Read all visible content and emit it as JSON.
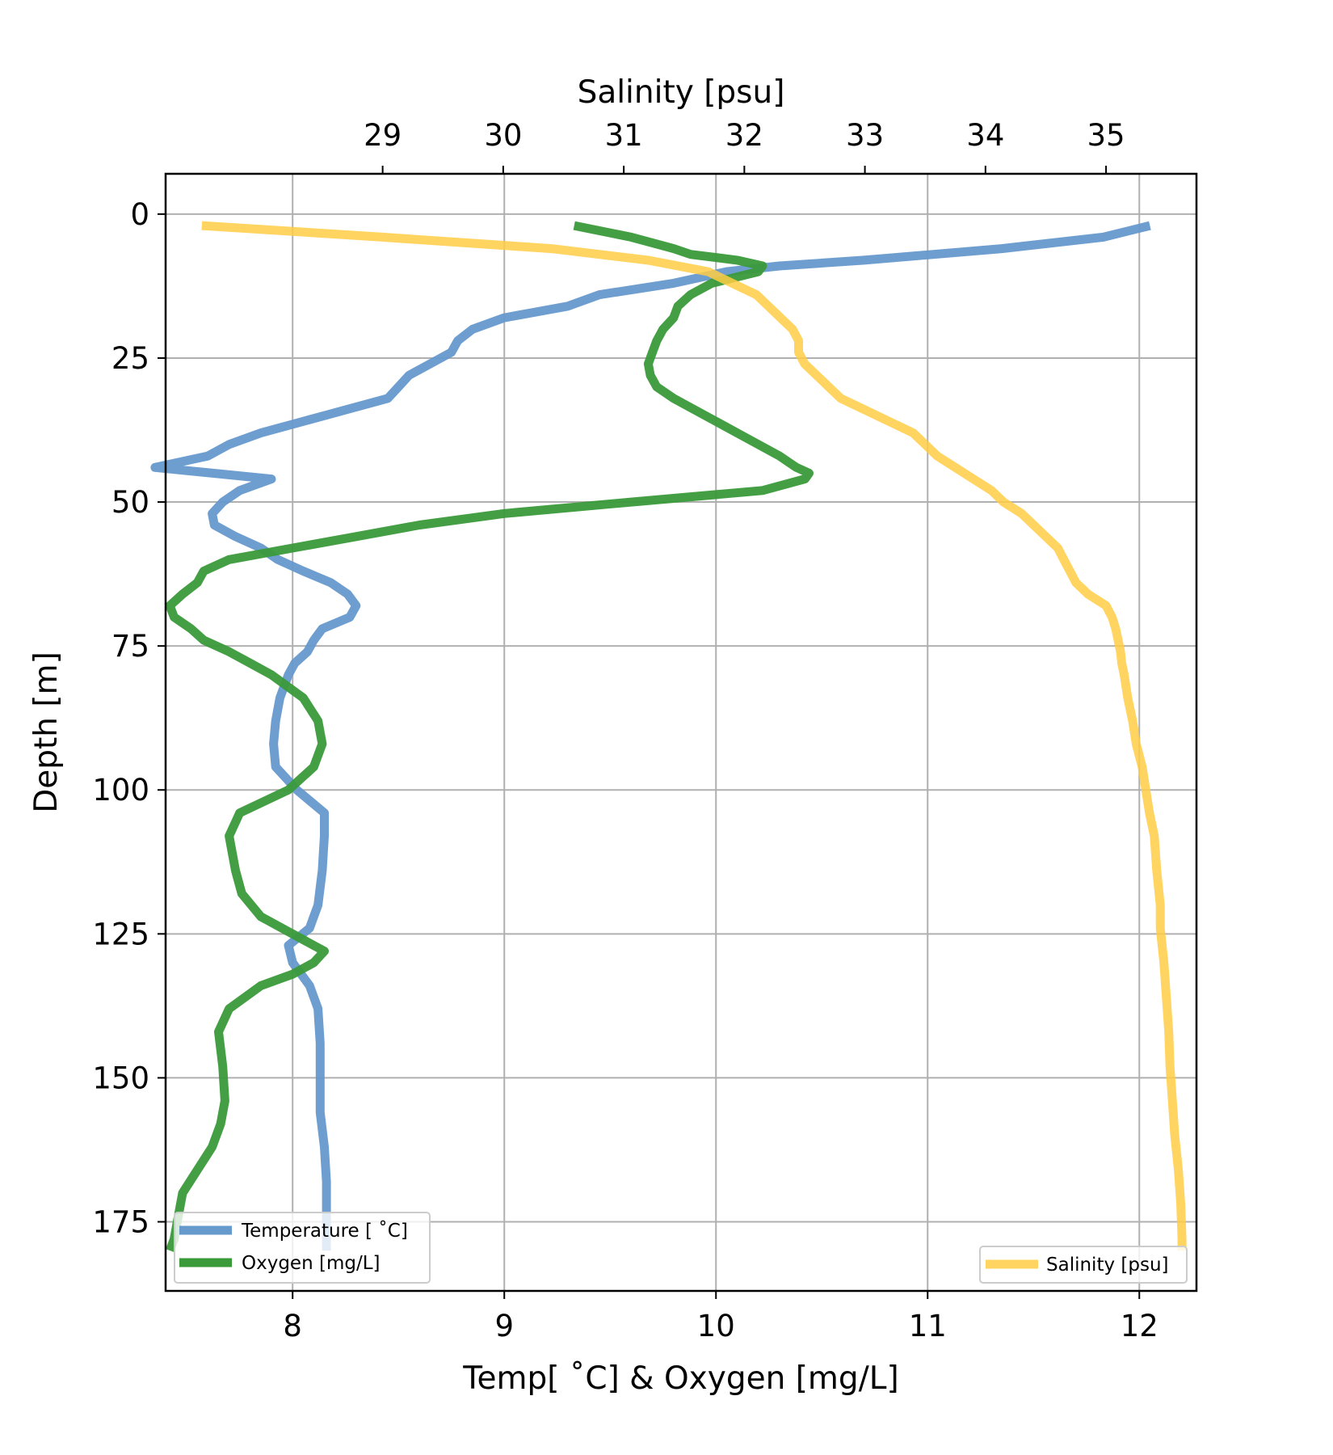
{
  "chart_data": {
    "type": "line",
    "xlabel": "Temp[$^\\circ$C] & Oxygen [$mg/L$]",
    "xlabel_display": "Temp[ ˚C] & Oxygen [mg/L]",
    "x2label": "Salinity [psu]",
    "ylabel": "Depth [m]",
    "x_ticks": [
      8,
      9,
      10,
      11,
      12
    ],
    "x2_ticks": [
      29,
      30,
      31,
      32,
      33,
      34,
      35
    ],
    "y_ticks": [
      0,
      25,
      50,
      75,
      100,
      125,
      150,
      175
    ],
    "xlim": [
      7.4,
      12.27
    ],
    "x2lim": [
      27.2,
      35.75
    ],
    "ylim": [
      187,
      -7
    ],
    "y_inverted": true,
    "grid": true,
    "legends": [
      {
        "placement": "lower-left",
        "entries": [
          "Temperature [ ˚C]",
          "Oxygen [mg/L]"
        ]
      },
      {
        "placement": "lower-right",
        "entries": [
          "Salinity [psu]"
        ]
      }
    ],
    "series": [
      {
        "name": "Temperature [ ˚C]",
        "axis": "bottom",
        "color": "#6699cc",
        "depth": [
          2,
          4,
          6,
          8,
          9,
          10,
          12,
          14,
          16,
          18,
          20,
          22,
          24,
          26,
          28,
          30,
          32,
          34,
          36,
          38,
          40,
          42,
          44,
          46,
          48,
          50,
          52,
          54,
          56,
          58,
          60,
          62,
          64,
          66,
          68,
          70,
          72,
          74,
          76,
          78,
          80,
          84,
          88,
          92,
          96,
          100,
          104,
          108,
          114,
          120,
          124,
          127,
          130,
          134,
          138,
          144,
          150,
          156,
          162,
          168,
          174,
          180
        ],
        "values": [
          12.05,
          11.83,
          11.35,
          10.7,
          10.3,
          10.05,
          9.8,
          9.45,
          9.3,
          9.0,
          8.85,
          8.78,
          8.75,
          8.65,
          8.55,
          8.5,
          8.45,
          8.25,
          8.05,
          7.85,
          7.7,
          7.6,
          7.35,
          7.9,
          7.75,
          7.67,
          7.62,
          7.63,
          7.73,
          7.85,
          7.93,
          8.05,
          8.18,
          8.26,
          8.3,
          8.27,
          8.14,
          8.1,
          8.07,
          8.01,
          7.98,
          7.94,
          7.92,
          7.91,
          7.92,
          8.02,
          8.15,
          8.15,
          8.14,
          8.12,
          8.08,
          7.98,
          8.0,
          8.08,
          8.12,
          8.13,
          8.13,
          8.13,
          8.15,
          8.16,
          8.16,
          8.16
        ],
        "ymask_note": ""
      },
      {
        "name": "Oxygen [mg/L]",
        "axis": "bottom",
        "color": "#3a9a3a",
        "depth": [
          2,
          4,
          6,
          7,
          8,
          9,
          10,
          12,
          14,
          16,
          18,
          20,
          22,
          24,
          26,
          28,
          30,
          32,
          34,
          36,
          38,
          40,
          42,
          44,
          45,
          46,
          48,
          50,
          52,
          54,
          56,
          58,
          60,
          62,
          64,
          66,
          68,
          70,
          72,
          74,
          76,
          78,
          80,
          84,
          88,
          92,
          96,
          100,
          104,
          108,
          114,
          118,
          122,
          126,
          128,
          130,
          132,
          134,
          138,
          142,
          148,
          154,
          158,
          162,
          166,
          170,
          174,
          178,
          180
        ],
        "values": [
          9.33,
          9.6,
          9.8,
          9.88,
          10.1,
          10.22,
          10.2,
          9.98,
          9.88,
          9.82,
          9.8,
          9.75,
          9.72,
          9.7,
          9.68,
          9.69,
          9.72,
          9.8,
          9.9,
          10.0,
          10.1,
          10.2,
          10.3,
          10.38,
          10.44,
          10.42,
          10.22,
          9.6,
          9.0,
          8.6,
          8.3,
          8.0,
          7.7,
          7.58,
          7.55,
          7.48,
          7.42,
          7.44,
          7.52,
          7.58,
          7.7,
          7.8,
          7.9,
          8.05,
          8.12,
          8.14,
          8.1,
          7.98,
          7.75,
          7.7,
          7.73,
          7.76,
          7.85,
          8.05,
          8.15,
          8.1,
          8.0,
          7.85,
          7.7,
          7.65,
          7.67,
          7.68,
          7.66,
          7.62,
          7.55,
          7.48,
          7.46,
          7.44,
          7.42
        ]
      },
      {
        "name": "Salinity [psu]",
        "axis": "top",
        "color": "#ffcc44",
        "depth": [
          2,
          4,
          6,
          8,
          10,
          12,
          14,
          16,
          18,
          20,
          22,
          24,
          26,
          28,
          30,
          32,
          34,
          36,
          38,
          40,
          42,
          44,
          46,
          48,
          50,
          52,
          54,
          56,
          58,
          60,
          62,
          64,
          66,
          68,
          70,
          72,
          74,
          76,
          78,
          80,
          84,
          88,
          92,
          96,
          100,
          104,
          108,
          114,
          120,
          124,
          130,
          136,
          142,
          148,
          154,
          160,
          166,
          172,
          178,
          180
        ],
        "values": [
          27.5,
          29.0,
          30.4,
          31.2,
          31.7,
          31.9,
          32.1,
          32.2,
          32.3,
          32.4,
          32.45,
          32.45,
          32.5,
          32.6,
          32.7,
          32.8,
          33.0,
          33.2,
          33.4,
          33.5,
          33.6,
          33.75,
          33.9,
          34.05,
          34.15,
          34.3,
          34.4,
          34.5,
          34.6,
          34.65,
          34.7,
          34.75,
          34.85,
          35.0,
          35.05,
          35.08,
          35.1,
          35.12,
          35.13,
          35.15,
          35.18,
          35.22,
          35.25,
          35.3,
          35.33,
          35.36,
          35.4,
          35.42,
          35.45,
          35.45,
          35.48,
          35.5,
          35.52,
          35.53,
          35.55,
          35.57,
          35.6,
          35.62,
          35.63,
          35.63
        ]
      }
    ]
  }
}
